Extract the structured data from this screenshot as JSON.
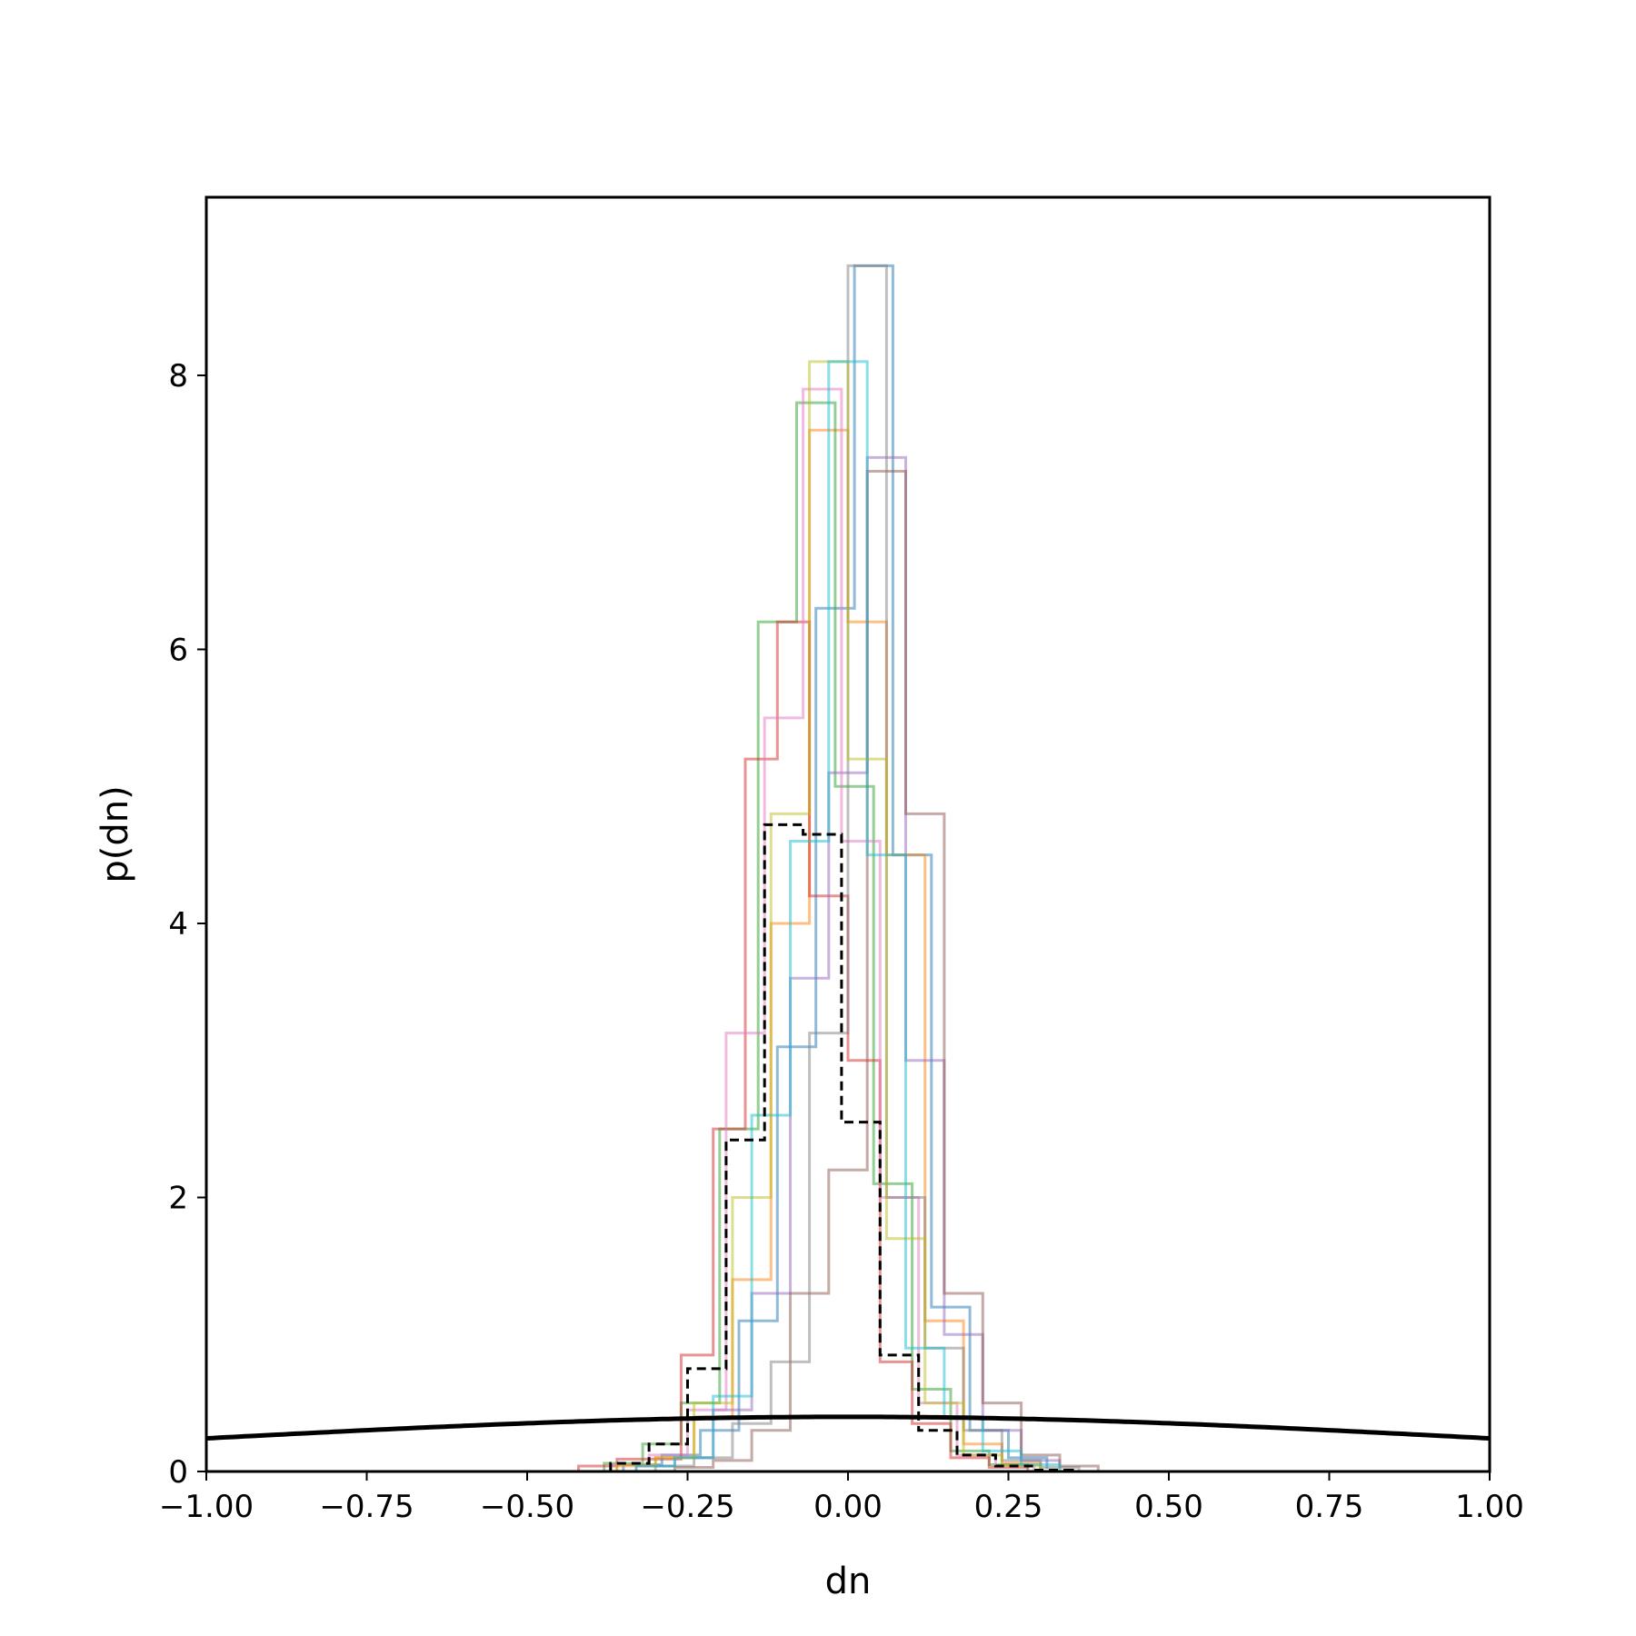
{
  "chart_data": {
    "type": "histogram",
    "title": "",
    "xlabel": "dn",
    "ylabel": "p(dn)",
    "xlim": [
      -1.0,
      1.0
    ],
    "ylim": [
      0,
      9.3
    ],
    "grid": false,
    "legend": "none",
    "xticks": [
      {
        "value": -1.0,
        "label": "−1.00"
      },
      {
        "value": -0.75,
        "label": "−0.75"
      },
      {
        "value": -0.5,
        "label": "−0.50"
      },
      {
        "value": -0.25,
        "label": "−0.25"
      },
      {
        "value": 0.0,
        "label": "0.00"
      },
      {
        "value": 0.25,
        "label": "0.25"
      },
      {
        "value": 0.5,
        "label": "0.50"
      },
      {
        "value": 0.75,
        "label": "0.75"
      },
      {
        "value": 1.0,
        "label": "1.00"
      }
    ],
    "yticks": [
      {
        "value": 0,
        "label": "0"
      },
      {
        "value": 2,
        "label": "2"
      },
      {
        "value": 4,
        "label": "4"
      },
      {
        "value": 6,
        "label": "6"
      },
      {
        "value": 8,
        "label": "8"
      }
    ],
    "series": [
      {
        "color": "#1f77b4",
        "edges": [
          -0.35,
          -0.29,
          -0.23,
          -0.17,
          -0.11,
          -0.05,
          0.01,
          0.07,
          0.13,
          0.19,
          0.25,
          0.31
        ],
        "values": [
          0.05,
          0.12,
          0.3,
          1.1,
          3.1,
          6.3,
          8.8,
          4.5,
          1.2,
          0.3,
          0.1,
          0.02
        ]
      },
      {
        "color": "#ff7f0e",
        "edges": [
          -0.36,
          -0.3,
          -0.24,
          -0.18,
          -0.12,
          -0.06,
          0.0,
          0.06,
          0.12,
          0.18,
          0.24,
          0.3
        ],
        "values": [
          0.04,
          0.1,
          0.4,
          1.4,
          4.0,
          7.6,
          6.2,
          4.5,
          1.1,
          0.2,
          0.06,
          0.02
        ]
      },
      {
        "color": "#2ca02c",
        "edges": [
          -0.38,
          -0.32,
          -0.26,
          -0.2,
          -0.14,
          -0.08,
          -0.02,
          0.04,
          0.1,
          0.16,
          0.22,
          0.28
        ],
        "values": [
          0.06,
          0.2,
          0.5,
          2.5,
          6.2,
          7.8,
          5.0,
          2.1,
          0.6,
          0.15,
          0.05,
          0.02
        ]
      },
      {
        "color": "#d62728",
        "edges": [
          -0.42,
          -0.36,
          -0.26,
          -0.21,
          -0.16,
          -0.11,
          -0.06,
          0.0,
          0.05,
          0.1,
          0.16,
          0.22,
          0.28
        ],
        "values": [
          0.04,
          0.09,
          0.85,
          2.5,
          5.2,
          6.2,
          4.2,
          3.0,
          0.8,
          0.35,
          0.1,
          0.03
        ]
      },
      {
        "color": "#9467bd",
        "edges": [
          -0.33,
          -0.27,
          -0.21,
          -0.15,
          -0.09,
          -0.03,
          0.03,
          0.09,
          0.15,
          0.21,
          0.27,
          0.33
        ],
        "values": [
          0.04,
          0.1,
          0.45,
          1.3,
          3.6,
          5.1,
          7.4,
          3.0,
          1.0,
          0.3,
          0.08,
          0.02
        ]
      },
      {
        "color": "#8c564b",
        "edges": [
          -0.27,
          -0.21,
          -0.15,
          -0.09,
          -0.03,
          0.03,
          0.09,
          0.15,
          0.21,
          0.27,
          0.33,
          0.39
        ],
        "values": [
          0.03,
          0.08,
          0.3,
          1.3,
          2.2,
          7.3,
          4.8,
          1.3,
          0.5,
          0.12,
          0.04,
          0.01
        ]
      },
      {
        "color": "#e377c2",
        "edges": [
          -0.37,
          -0.31,
          -0.25,
          -0.19,
          -0.13,
          -0.07,
          -0.01,
          0.05,
          0.11,
          0.17,
          0.23,
          0.29
        ],
        "values": [
          0.05,
          0.12,
          0.45,
          3.2,
          5.5,
          7.9,
          4.6,
          2.0,
          0.5,
          0.12,
          0.04,
          0.01
        ]
      },
      {
        "color": "#7f7f7f",
        "edges": [
          -0.3,
          -0.24,
          -0.18,
          -0.12,
          -0.06,
          0.0,
          0.06,
          0.12,
          0.18,
          0.24,
          0.3,
          0.36
        ],
        "values": [
          0.04,
          0.1,
          0.35,
          0.8,
          3.2,
          8.8,
          2.0,
          0.9,
          0.3,
          0.08,
          0.03,
          0.01
        ]
      },
      {
        "color": "#bcbd22",
        "edges": [
          -0.36,
          -0.3,
          -0.24,
          -0.18,
          -0.12,
          -0.06,
          0.0,
          0.06,
          0.12,
          0.18,
          0.24,
          0.3
        ],
        "values": [
          0.05,
          0.1,
          0.5,
          2.0,
          4.8,
          8.1,
          5.2,
          1.7,
          0.5,
          0.12,
          0.04,
          0.01
        ]
      },
      {
        "color": "#17becf",
        "edges": [
          -0.33,
          -0.27,
          -0.21,
          -0.15,
          -0.09,
          -0.03,
          0.03,
          0.09,
          0.15,
          0.21,
          0.27,
          0.33
        ],
        "values": [
          0.04,
          0.1,
          0.55,
          2.6,
          4.6,
          8.1,
          4.5,
          0.9,
          0.4,
          0.15,
          0.05,
          0.01
        ]
      }
    ],
    "mean_series": {
      "color": "#000000",
      "style": "dashed",
      "edges": [
        -0.37,
        -0.31,
        -0.25,
        -0.19,
        -0.13,
        -0.07,
        -0.01,
        0.05,
        0.11,
        0.17,
        0.23,
        0.29,
        0.35
      ],
      "values": [
        0.06,
        0.2,
        0.75,
        2.42,
        4.72,
        4.65,
        2.55,
        0.85,
        0.3,
        0.12,
        0.04,
        0.01
      ]
    },
    "prior_curve": {
      "color": "#000000",
      "style": "solid",
      "type": "gaussian",
      "mean": 0.0,
      "sigma": 1.0
    }
  }
}
